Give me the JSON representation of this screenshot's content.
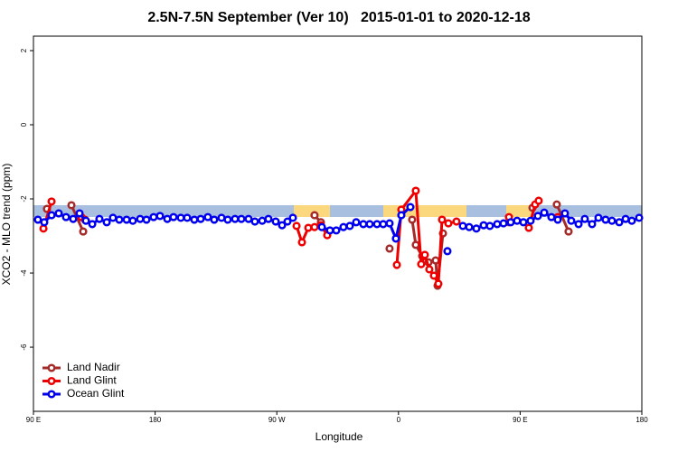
{
  "chart_data": {
    "type": "line",
    "title": "2.5N-7.5N September (Ver 10)   2015-01-01 to 2020-12-18",
    "x_label": "Longitude",
    "y_label": "XCO2 - MLO trend (ppm)",
    "xlim": [
      90,
      540
    ],
    "xticks": [
      {
        "value": 90,
        "label": "90 E"
      },
      180,
      {
        "value": 270,
        "label": "90 W"
      },
      {
        "value": 360,
        "label": "0"
      },
      {
        "value": 450,
        "label": "90 E"
      },
      {
        "value": 540,
        "label": "180"
      }
    ],
    "ylim": [
      -7.73,
      2.39
    ],
    "yticks": [
      -6,
      -4,
      -2,
      0,
      2
    ],
    "legend": "bottom-left",
    "series": [
      {
        "name": "Land Nadir",
        "color": "#a52a2a",
        "x": [
          100.0,
          109.0,
          118.1,
          126.8,
          290.0,
          297.9,
          302.6,
          330.0,
          353.4,
          362.0,
          370.1,
          372.8,
          377.5,
          382.2,
          387.5,
          388.9,
          392.9,
          420.0,
          441.7,
          450.0,
          459.1,
          470.0,
          477.1,
          485.8
        ],
        "values": [
          -2.27,
          null,
          -2.17,
          -2.88,
          null,
          -2.44,
          -2.63,
          null,
          -3.34,
          null,
          -2.56,
          -3.24,
          -3.54,
          -3.71,
          -3.66,
          -4.34,
          -2.93,
          null,
          -2.63,
          null,
          -2.24,
          null,
          -2.15,
          -2.88
        ]
      },
      {
        "name": "Land Glint",
        "color": "#ee0000",
        "x": [
          97.4,
          103.4,
          115.0,
          125.4,
          128.1,
          200.0,
          284.6,
          288.6,
          293.3,
          297.9,
          302.6,
          307.3,
          330.0,
          358.8,
          362.1,
          372.8,
          376.8,
          379.5,
          382.8,
          386.2,
          389.5,
          392.2,
          396.9,
          402.9,
          420.0,
          441.7,
          450.0,
          456.4,
          461.1,
          463.7,
          470.0,
          477.8
        ],
        "values": [
          -2.8,
          -2.07,
          null,
          -2.49,
          -2.56,
          null,
          -2.73,
          -3.17,
          -2.78,
          -2.76,
          -2.71,
          -2.98,
          null,
          -3.78,
          -2.29,
          -1.78,
          -3.76,
          -3.51,
          -3.9,
          -4.07,
          -4.29,
          -2.56,
          -2.66,
          -2.61,
          null,
          -2.49,
          null,
          -2.78,
          -2.15,
          -2.05,
          null,
          -2.49
        ]
      },
      {
        "name": "Ocean Glint",
        "color": "#0000ee",
        "x": [
          93.3,
          98.0,
          103.4,
          108.7,
          114.1,
          119.4,
          124.1,
          128.8,
          133.5,
          138.8,
          144.2,
          148.8,
          153.5,
          158.9,
          163.5,
          168.9,
          173.6,
          178.9,
          183.6,
          189.0,
          193.6,
          199.0,
          203.7,
          209.0,
          213.7,
          219.0,
          223.7,
          229.1,
          233.7,
          239.1,
          243.8,
          249.1,
          253.8,
          259.2,
          263.8,
          269.2,
          273.9,
          277.9,
          281.9,
          292.0,
          303.3,
          309.3,
          314.0,
          319.3,
          324.0,
          328.7,
          334.0,
          338.7,
          344.1,
          348.7,
          353.4,
          358.1,
          362.1,
          368.8,
          383.0,
          396.2,
          402.0,
          407.6,
          412.3,
          417.6,
          423.0,
          427.6,
          433.0,
          437.7,
          443.0,
          447.7,
          452.4,
          457.7,
          463.1,
          467.8,
          473.1,
          477.8,
          483.1,
          487.8,
          493.2,
          497.8,
          503.2,
          507.9,
          513.2,
          517.9,
          523.3,
          528.0,
          532.6,
          538.0
        ],
        "values": [
          -2.56,
          -2.63,
          -2.44,
          -2.39,
          -2.49,
          -2.54,
          -2.39,
          -2.59,
          -2.68,
          -2.54,
          -2.63,
          -2.51,
          -2.56,
          -2.56,
          -2.59,
          -2.54,
          -2.56,
          -2.49,
          -2.46,
          -2.54,
          -2.49,
          -2.51,
          -2.51,
          -2.56,
          -2.54,
          -2.49,
          -2.56,
          -2.51,
          -2.56,
          -2.54,
          -2.54,
          -2.54,
          -2.61,
          -2.59,
          -2.54,
          -2.61,
          -2.71,
          -2.61,
          -2.51,
          null,
          -2.76,
          -2.85,
          -2.85,
          -2.76,
          -2.73,
          -2.63,
          -2.68,
          -2.68,
          -2.68,
          -2.68,
          -2.66,
          -3.07,
          -2.44,
          -2.22,
          null,
          -3.41,
          null,
          -2.73,
          -2.76,
          -2.8,
          -2.71,
          -2.73,
          -2.68,
          -2.66,
          -2.63,
          -2.59,
          -2.63,
          -2.59,
          -2.46,
          -2.37,
          -2.49,
          -2.56,
          -2.39,
          -2.59,
          -2.68,
          -2.54,
          -2.68,
          -2.51,
          -2.56,
          -2.59,
          -2.63,
          -2.54,
          -2.59,
          -2.51
        ]
      }
    ]
  }
}
